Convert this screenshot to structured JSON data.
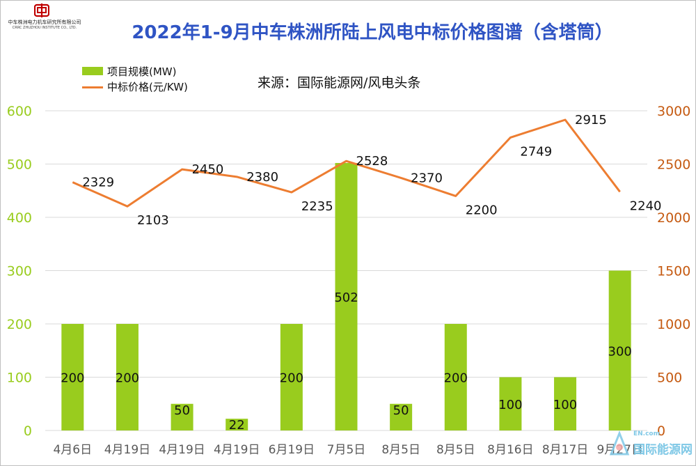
{
  "header": {
    "title": "2022年1-9月中车株洲所陆上风电中标价格图谱（含塔筒）",
    "source": "来源：国际能源网/风电头条"
  },
  "logo": {
    "name_cn": "中车株洲电力机车研究所有限公司",
    "name_en": "CRRC ZHUZHOU INSTITUTE CO., LTD."
  },
  "watermark": {
    "en": "EN.com",
    "cn": "国际能源网"
  },
  "colors": {
    "title": "#2F54C4",
    "bar": "#99CC1E",
    "line": "#ED7D31",
    "left_axis": "#99CC1E",
    "right_axis": "#C55A11"
  },
  "chart_data": {
    "type": "bar",
    "title": "2022年1-9月中车株洲所陆上风电中标价格图谱（含塔筒）",
    "categories": [
      "4月6日",
      "4月19日",
      "4月19日",
      "4月19日",
      "6月19日",
      "7月5日",
      "8月5日",
      "8月5日",
      "8月16日",
      "8月17日",
      "9月27日"
    ],
    "series": [
      {
        "name": "项目规模(MW)",
        "type": "bar",
        "axis": "left",
        "values": [
          200,
          200,
          50,
          22,
          200,
          502,
          50,
          200,
          100,
          100,
          300
        ]
      },
      {
        "name": "中标价格(元/KW)",
        "type": "line",
        "axis": "right",
        "values": [
          2329,
          2103,
          2450,
          2380,
          2235,
          2528,
          2370,
          2200,
          2749,
          2915,
          2240
        ]
      }
    ],
    "y_left": {
      "min": 0,
      "max": 600,
      "ticks": [
        0,
        100,
        200,
        300,
        400,
        500,
        600
      ]
    },
    "y_right": {
      "min": 0,
      "max": 3000,
      "ticks": [
        0,
        500,
        1000,
        1500,
        2000,
        2500,
        3000
      ]
    },
    "grid": true,
    "legend_position": "top-left"
  }
}
